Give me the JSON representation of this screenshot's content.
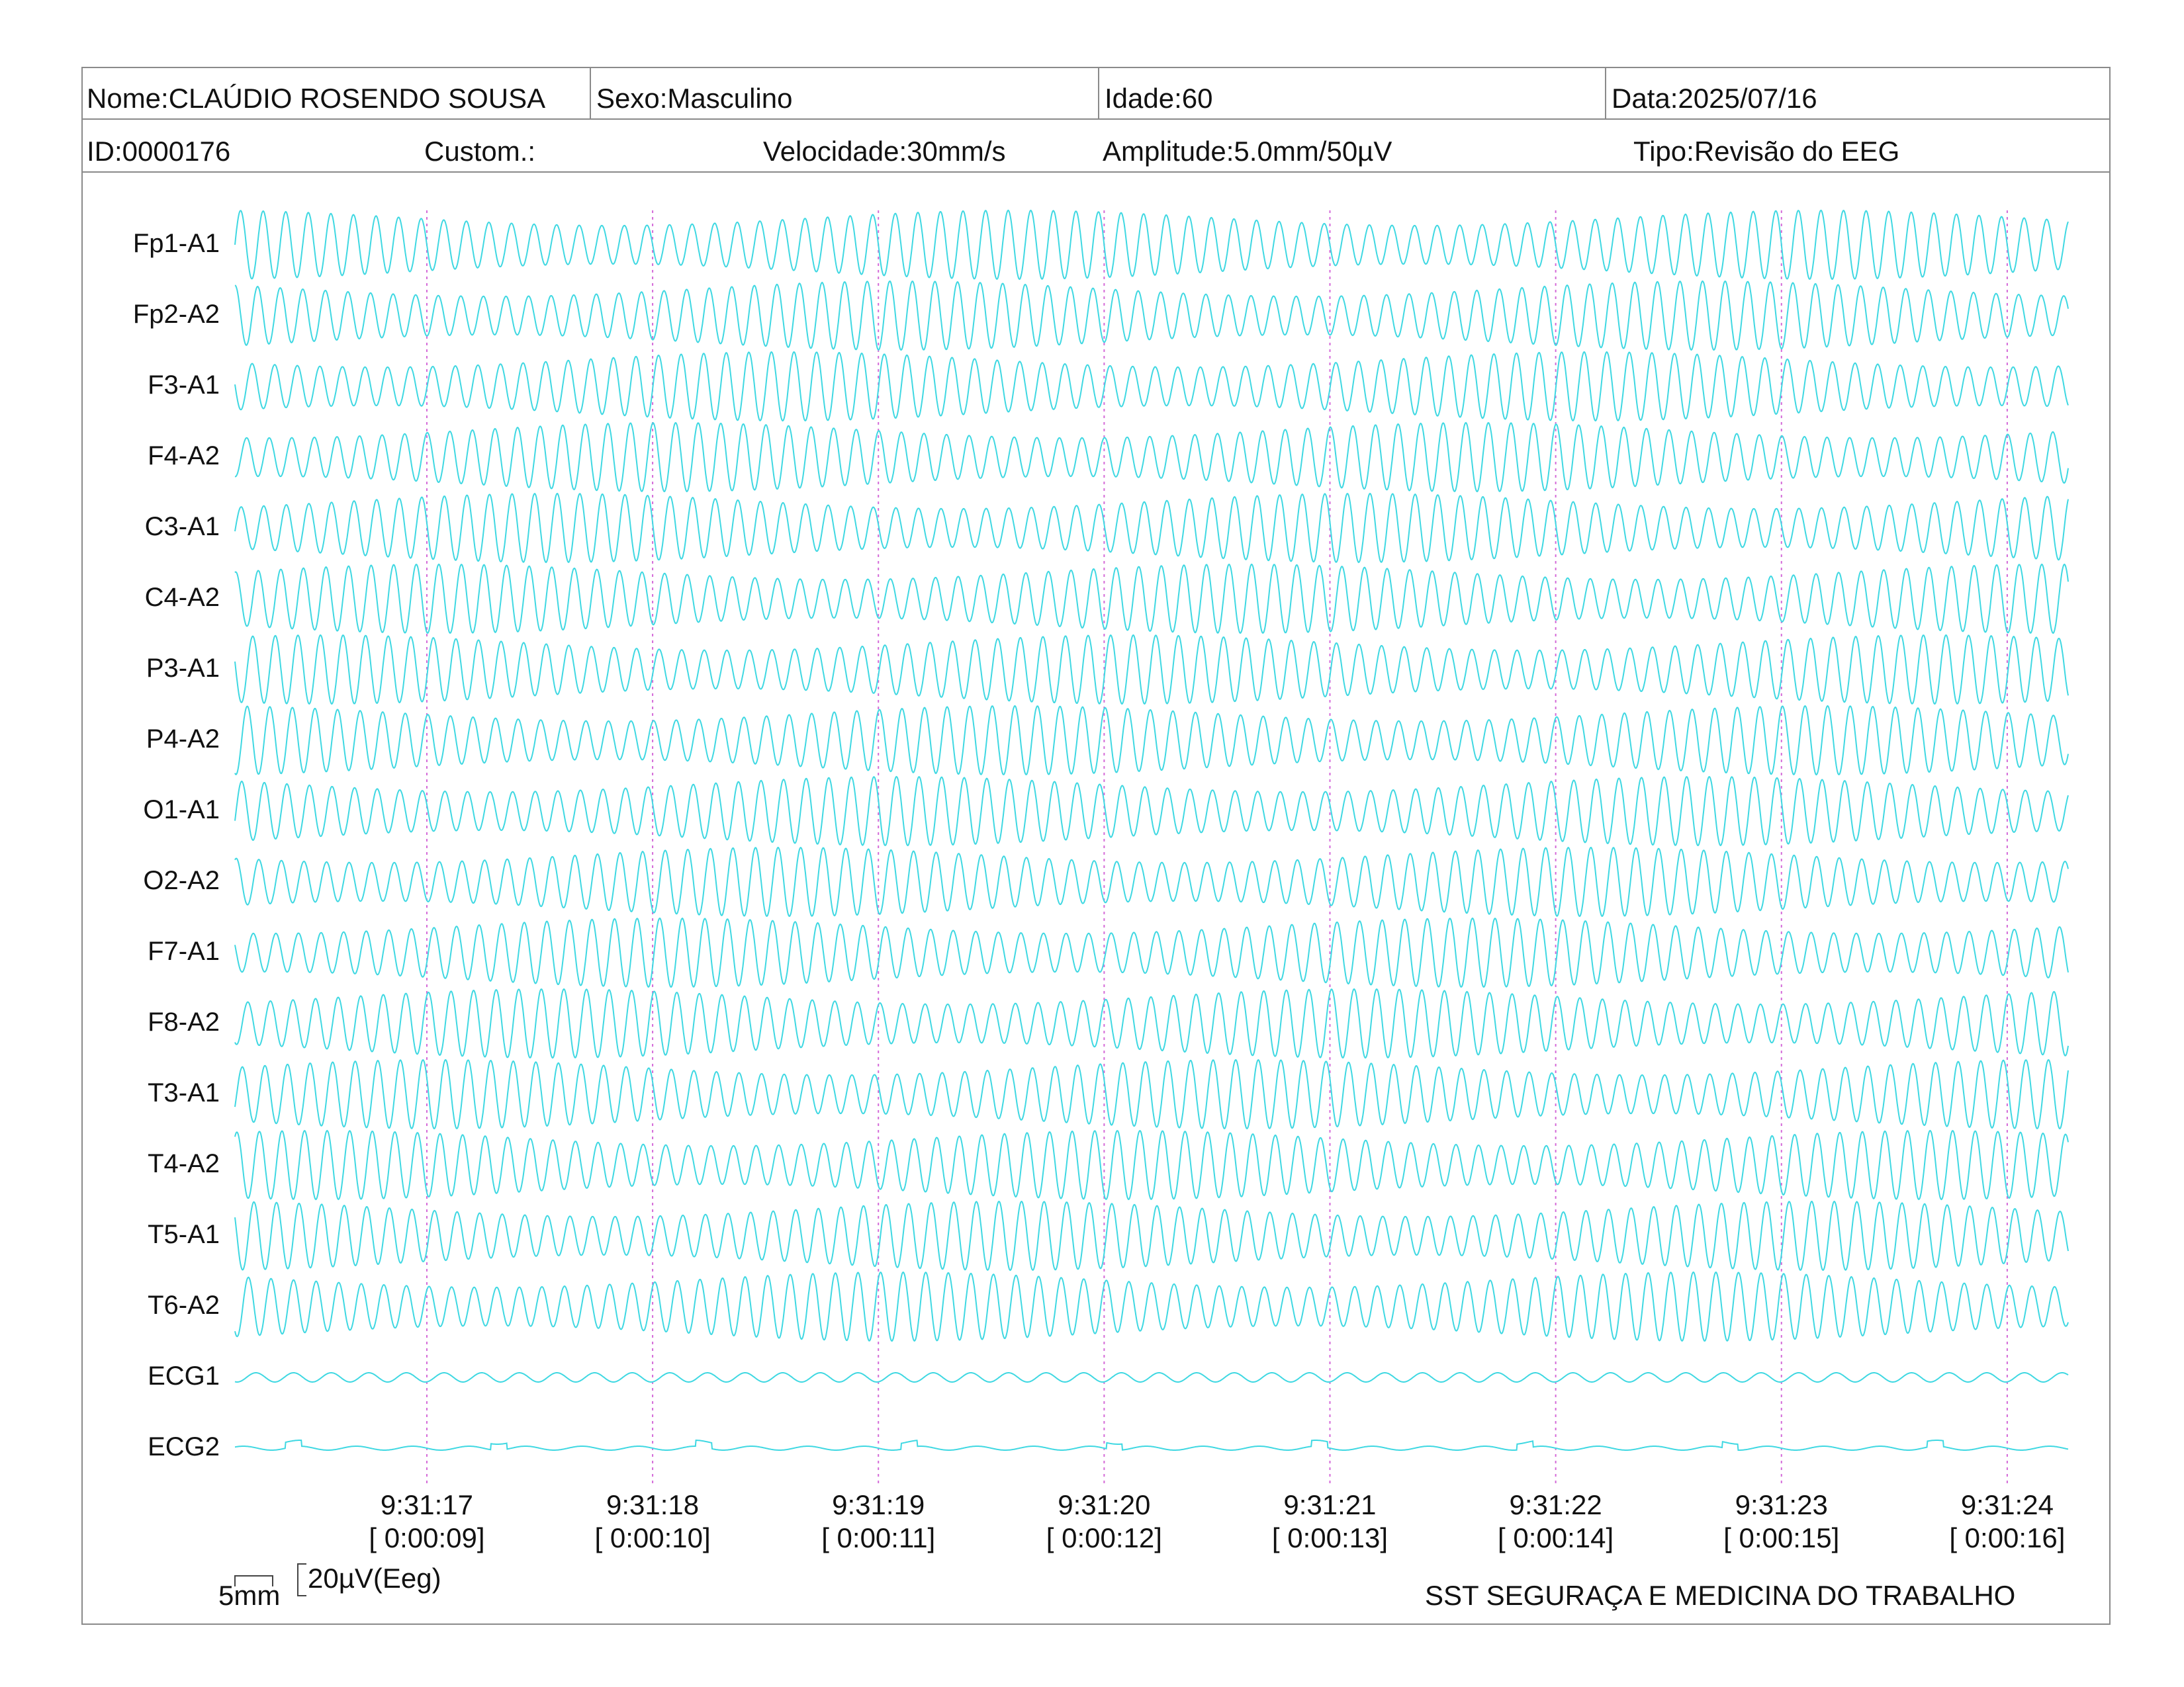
{
  "header": {
    "nome": "Nome:CLAÚDIO ROSENDO SOUSA",
    "sexo": "Sexo:Masculino",
    "idade": "Idade:60",
    "data": "Data:2025/07/16",
    "id": "ID:0000176",
    "custom": "Custom.:",
    "velocidade": "Velocidade:30mm/s",
    "amplitude": "Amplitude:5.0mm/50µV",
    "tipo": "Tipo:Revisão do EEG"
  },
  "colors": {
    "trace": "#3fd8e2",
    "marker": "#d46ad8",
    "border": "#8a8a8a"
  },
  "chart_data": {
    "type": "line",
    "title": "",
    "channels": [
      "Fp1-A1",
      "Fp2-A2",
      "F3-A1",
      "F4-A2",
      "C3-A1",
      "C4-A2",
      "P3-A1",
      "P4-A2",
      "O1-A1",
      "O2-A2",
      "F7-A1",
      "F8-A2",
      "T3-A1",
      "T4-A2",
      "T5-A1",
      "T6-A2",
      "ECG1",
      "ECG2"
    ],
    "time_markers": [
      {
        "clock": "9:31:17",
        "elapsed": "[ 0:00:09]"
      },
      {
        "clock": "9:31:18",
        "elapsed": "[ 0:00:10]"
      },
      {
        "clock": "9:31:19",
        "elapsed": "[ 0:00:11]"
      },
      {
        "clock": "9:31:20",
        "elapsed": "[ 0:00:12]"
      },
      {
        "clock": "9:31:21",
        "elapsed": "[ 0:00:13]"
      },
      {
        "clock": "9:31:22",
        "elapsed": "[ 0:00:14]"
      },
      {
        "clock": "9:31:23",
        "elapsed": "[ 0:00:15]"
      },
      {
        "clock": "9:31:24",
        "elapsed": "[ 0:00:16]"
      }
    ],
    "x_range_s": [
      8.15,
      16.27
    ],
    "eeg_frequency_hz": 10,
    "ecg_frequency_hz": 6,
    "scale": {
      "horizontal": "5mm",
      "vertical": "20µV(Eeg)"
    }
  },
  "footer": "SST SEGURAÇA E MEDICINA DO TRABALHO"
}
